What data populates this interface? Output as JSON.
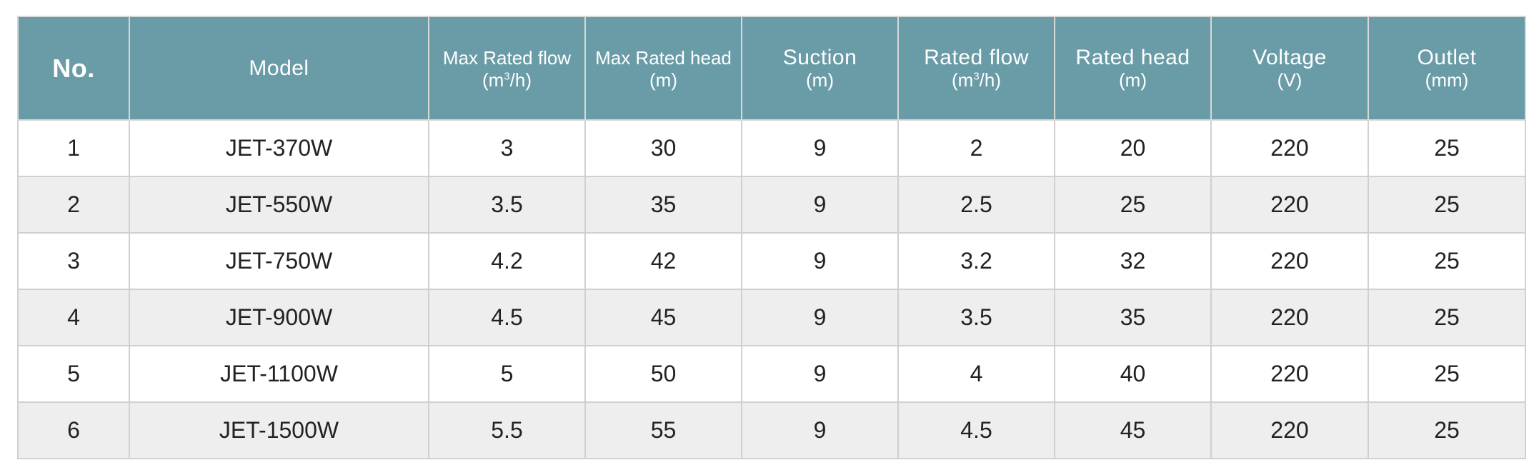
{
  "table": {
    "headers": [
      {
        "label": "No.",
        "unit": ""
      },
      {
        "label": "Model",
        "unit": ""
      },
      {
        "label": "Max Rated flow",
        "unit_prefix": "(m",
        "unit_sup": "3",
        "unit_suffix": "/h)"
      },
      {
        "label": "Max Rated head",
        "unit": "(m)"
      },
      {
        "label": "Suction",
        "unit": "(m)"
      },
      {
        "label": "Rated flow",
        "unit_prefix": "(m",
        "unit_sup": "3",
        "unit_suffix": "/h)"
      },
      {
        "label": "Rated head",
        "unit": "(m)"
      },
      {
        "label": "Voltage",
        "unit": "(V)"
      },
      {
        "label": "Outlet",
        "unit": "(mm)"
      }
    ],
    "rows": [
      [
        "1",
        "JET-370W",
        "3",
        "30",
        "9",
        "2",
        "20",
        "220",
        "25"
      ],
      [
        "2",
        "JET-550W",
        "3.5",
        "35",
        "9",
        "2.5",
        "25",
        "220",
        "25"
      ],
      [
        "3",
        "JET-750W",
        "4.2",
        "42",
        "9",
        "3.2",
        "32",
        "220",
        "25"
      ],
      [
        "4",
        "JET-900W",
        "4.5",
        "45",
        "9",
        "3.5",
        "35",
        "220",
        "25"
      ],
      [
        "5",
        "JET-1100W",
        "5",
        "50",
        "9",
        "4",
        "40",
        "220",
        "25"
      ],
      [
        "6",
        "JET-1500W",
        "5.5",
        "55",
        "9",
        "4.5",
        "45",
        "220",
        "25"
      ]
    ]
  },
  "colors": {
    "header_bg": "#699ca7",
    "header_text": "#ffffff",
    "row_alt_bg": "#eeeeee",
    "border": "#d0d0d0"
  }
}
